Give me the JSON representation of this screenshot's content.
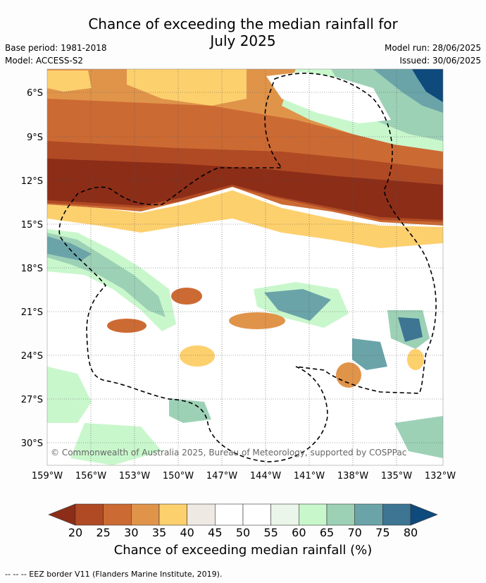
{
  "title_line1": "Chance of exceeding the median rainfall for",
  "title_line2": "July 2025",
  "meta_left": [
    "Base period: 1981-2018",
    "Model: ACCESS-S2"
  ],
  "meta_right": [
    "Model run: 28/06/2025",
    "Issued: 30/06/2025"
  ],
  "lat_labels": [
    "6°S",
    "9°S",
    "12°S",
    "15°S",
    "18°S",
    "21°S",
    "24°S",
    "27°S",
    "30°S"
  ],
  "lon_labels": [
    "159°W",
    "156°W",
    "153°W",
    "150°W",
    "147°W",
    "144°W",
    "141°W",
    "138°W",
    "135°W",
    "132°W"
  ],
  "copyright": "© Commonwealth of Australia 2025, Bureau of Meteorology, supported by COSPPac",
  "colorbar": {
    "ticks": [
      "20",
      "25",
      "30",
      "35",
      "40",
      "45",
      "50",
      "55",
      "60",
      "65",
      "70",
      "75",
      "80"
    ],
    "label": "Chance of exceeding median rainfall (%)",
    "colors": [
      "#8c2d18",
      "#b04a24",
      "#cc6a33",
      "#e0944a",
      "#fdd06e",
      "#efe9e4",
      "#ffffff",
      "#ffffff",
      "#eaf6ea",
      "#c9f7cc",
      "#9dd1b6",
      "#6aa4a8",
      "#3d7593",
      "#0e4a7c"
    ]
  },
  "footnote": "--  --  -- EEZ border V11 (Flanders Marine Institute, 2019)."
}
